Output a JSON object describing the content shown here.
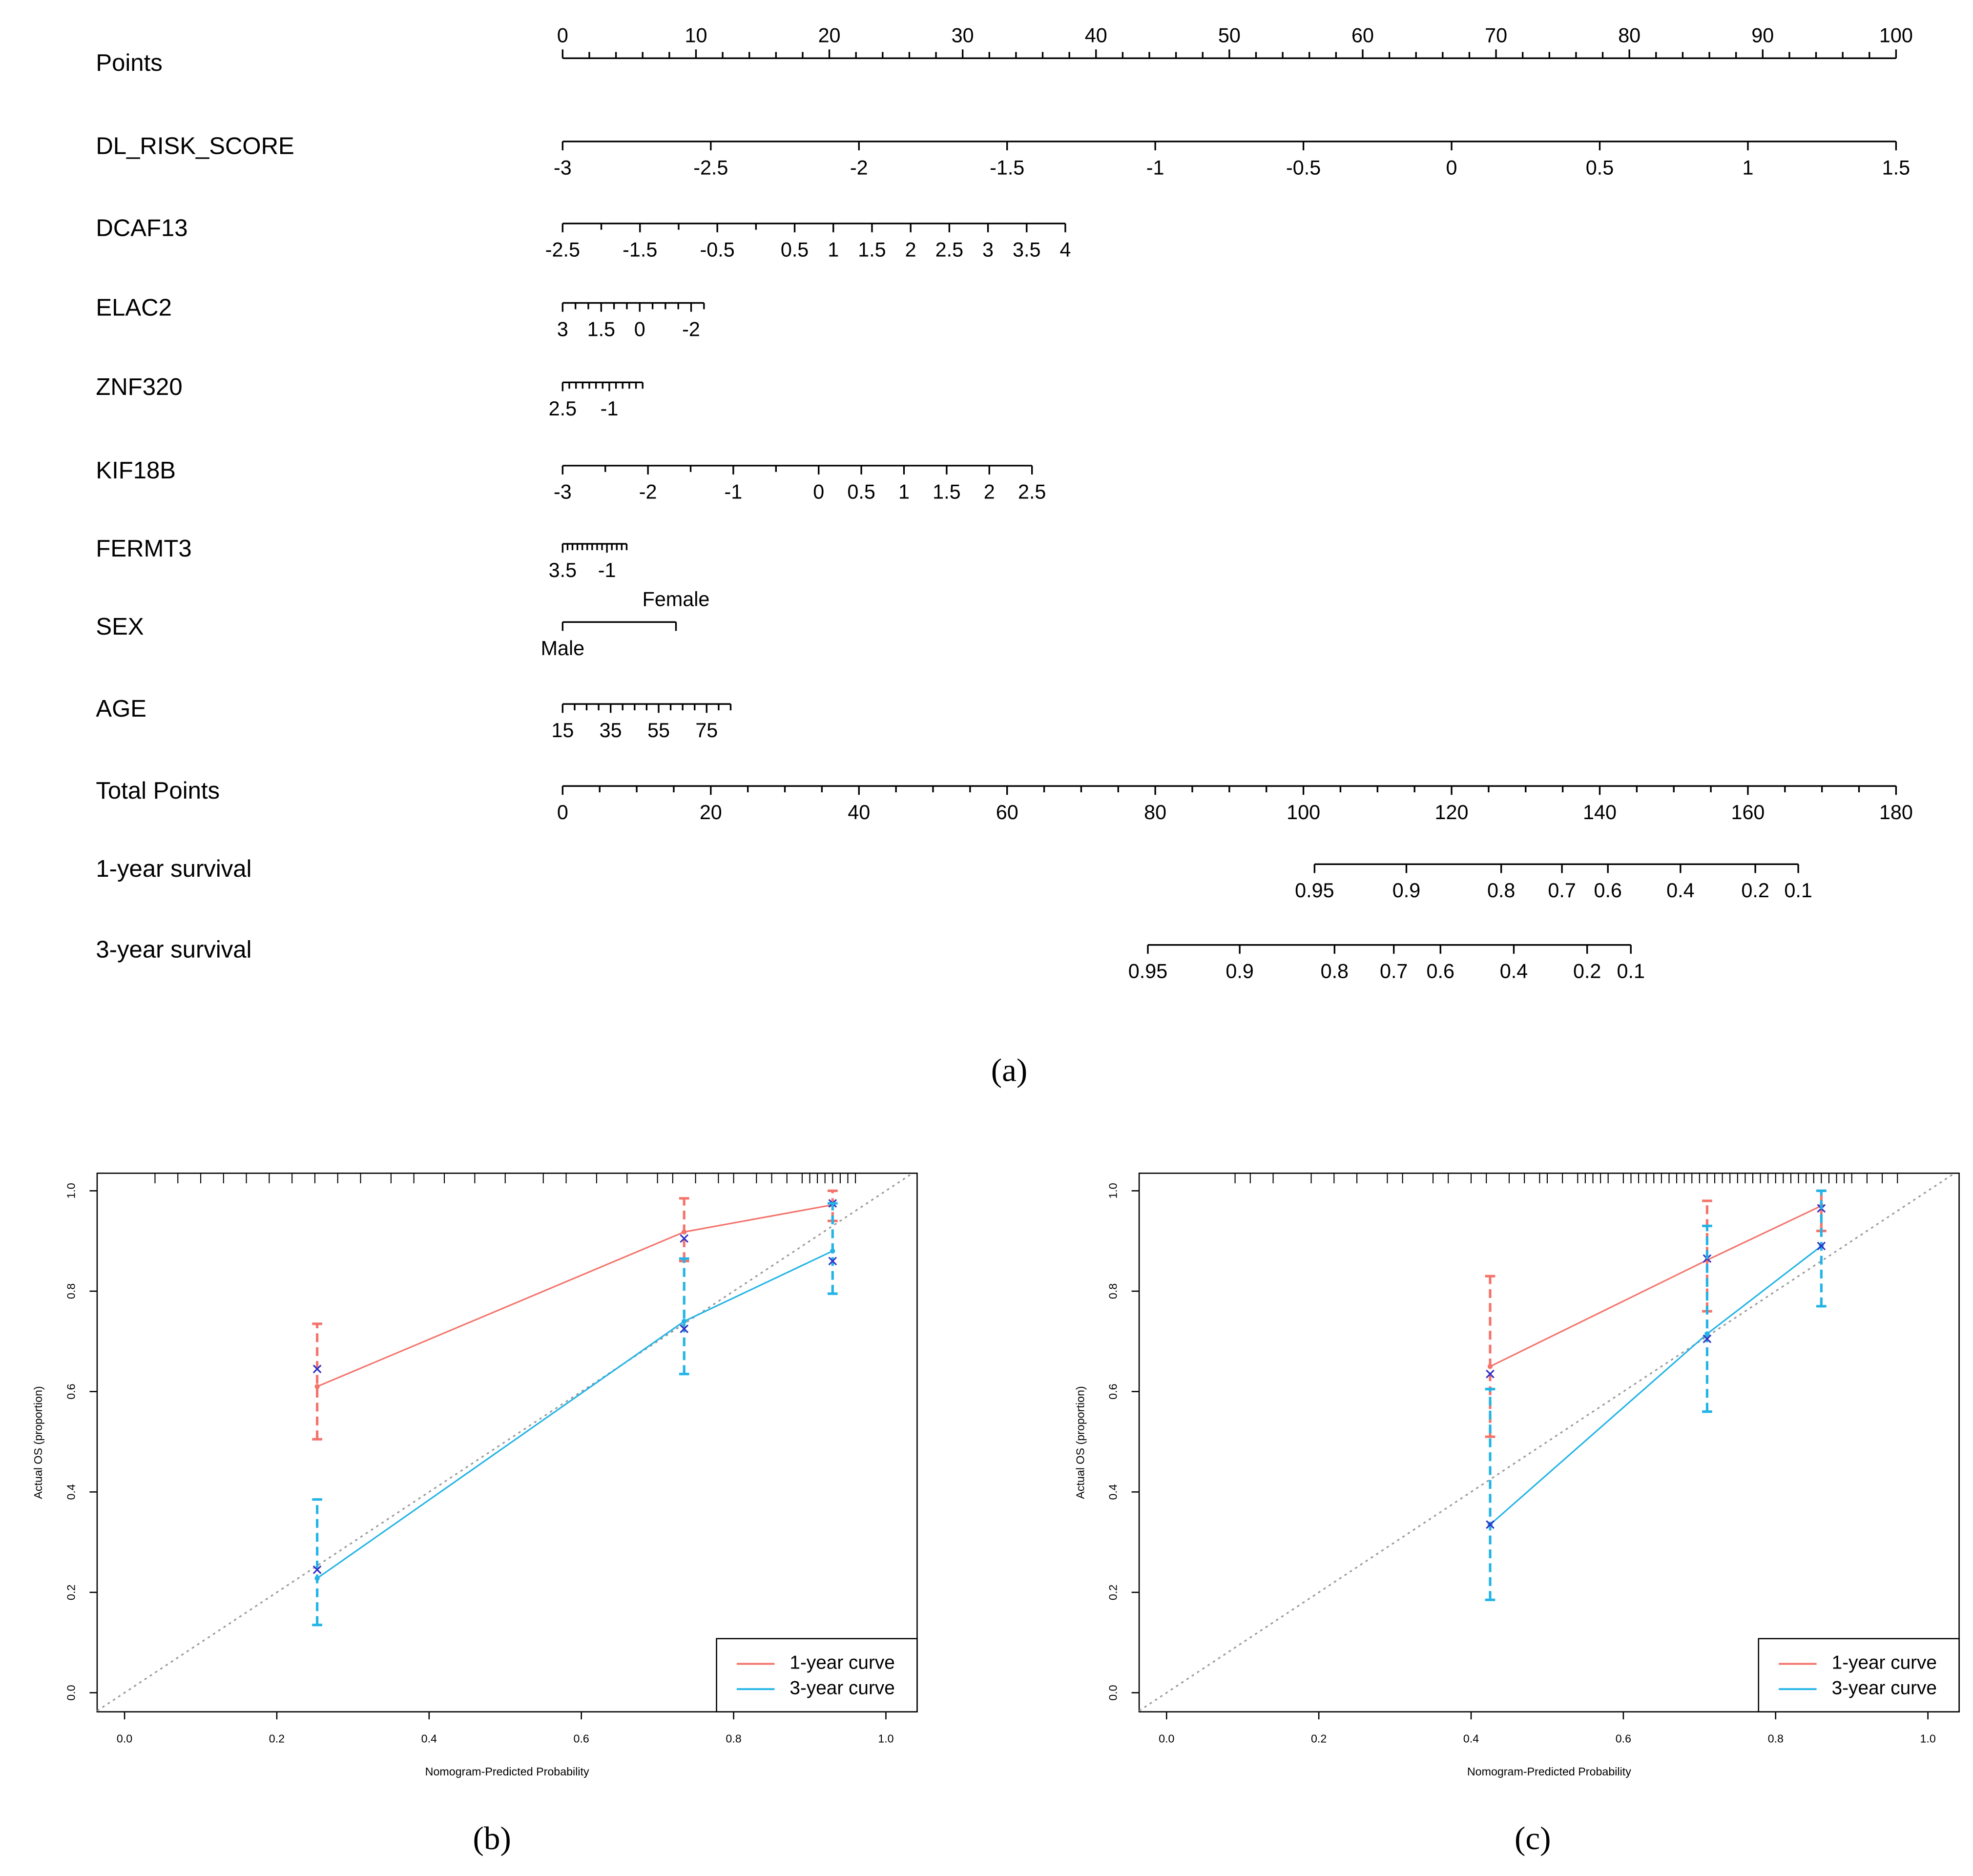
{
  "chart_data": [
    {
      "type": "nomogram",
      "caption": "(a)",
      "rows": [
        {
          "name": "Points",
          "range": [
            0,
            100
          ],
          "points_range": [
            0,
            100
          ],
          "ticks": [
            0,
            10,
            20,
            30,
            40,
            50,
            60,
            70,
            80,
            90,
            100
          ],
          "minor_ticks": [
            2,
            4,
            6,
            8,
            12,
            14,
            16,
            18,
            22,
            24,
            26,
            28,
            32,
            34,
            36,
            38,
            42,
            44,
            46,
            48,
            52,
            54,
            56,
            58,
            62,
            64,
            66,
            68,
            72,
            74,
            76,
            78,
            82,
            84,
            86,
            88,
            92,
            94,
            96,
            98
          ]
        },
        {
          "name": "DL_RISK_SCORE",
          "range": [
            -3,
            1.5
          ],
          "points_range": [
            0,
            100
          ],
          "ticks": [
            -3,
            -2.5,
            -2,
            -1.5,
            -1,
            -0.5,
            0,
            0.5,
            1,
            1.5
          ]
        },
        {
          "name": "DCAF13",
          "range": [
            -2.5,
            4
          ],
          "points_range": [
            0,
            37.7
          ],
          "ticks": [
            -2.5,
            -1.5,
            -0.5,
            0.5,
            1,
            1.5,
            2,
            2.5,
            3,
            3.5,
            4
          ],
          "minor_ticks": [
            -2,
            -1,
            0
          ]
        },
        {
          "name": "ELAC2",
          "range": [
            3,
            -2.5
          ],
          "points_range": [
            0,
            10.6
          ],
          "ticks": [
            3,
            1.5,
            0,
            -2
          ],
          "minor_ticks": [
            2.5,
            2,
            1,
            0.5,
            -0.5,
            -1,
            -1.5,
            -2.5
          ]
        },
        {
          "name": "ZNF320",
          "range": [
            2.5,
            -3.5
          ],
          "points_range": [
            0,
            6
          ],
          "ticks": [
            2.5,
            -1
          ],
          "minor_ticks": [
            2,
            1.5,
            1,
            0.5,
            0,
            -0.5,
            -1.5,
            -2,
            -2.5,
            -3,
            -3.5
          ]
        },
        {
          "name": "KIF18B",
          "range": [
            -3,
            2.5
          ],
          "points_range": [
            0,
            35.2
          ],
          "ticks": [
            -3,
            -2,
            -1,
            0,
            0.5,
            1,
            1.5,
            2,
            2.5
          ],
          "minor_ticks": [
            -2.5,
            -1.5,
            -0.5
          ]
        },
        {
          "name": "FERMT3",
          "range": [
            3.5,
            -3
          ],
          "points_range": [
            0,
            4.8
          ],
          "ticks": [
            3.5,
            -1
          ],
          "minor_ticks": [
            3,
            2.5,
            2,
            1.5,
            1,
            0.5,
            0,
            -0.5,
            -1.5,
            -2,
            -2.5,
            -3
          ]
        },
        {
          "name": "SEX",
          "categories": [
            "Male",
            "Female"
          ],
          "category_points": [
            0,
            8.5
          ]
        },
        {
          "name": "AGE",
          "range": [
            15,
            85
          ],
          "points_range": [
            0,
            12.6
          ],
          "ticks": [
            15,
            35,
            55,
            75
          ],
          "minor_ticks": [
            20,
            25,
            30,
            40,
            45,
            50,
            60,
            65,
            70,
            80,
            85
          ]
        },
        {
          "name": "Total Points",
          "range": [
            0,
            180
          ],
          "points_range": [
            0,
            100
          ],
          "ticks": [
            0,
            20,
            40,
            60,
            80,
            100,
            120,
            140,
            160,
            180
          ],
          "minor_ticks": [
            5,
            10,
            15,
            25,
            30,
            35,
            45,
            50,
            55,
            65,
            70,
            75,
            85,
            90,
            95,
            105,
            110,
            115,
            125,
            130,
            135,
            145,
            150,
            155,
            165,
            170,
            175
          ]
        },
        {
          "name": "1-year survival",
          "ticks": [
            0.95,
            0.9,
            0.8,
            0.7,
            0.6,
            0.4,
            0.2,
            0.1
          ],
          "total_points": [
            101.5,
            113.9,
            126.7,
            134.9,
            141.1,
            150.9,
            161.0,
            166.8
          ]
        },
        {
          "name": "3-year survival",
          "ticks": [
            0.95,
            0.9,
            0.8,
            0.7,
            0.6,
            0.4,
            0.2,
            0.1
          ],
          "total_points": [
            79.0,
            91.4,
            104.2,
            112.2,
            118.5,
            128.4,
            138.3,
            144.2
          ]
        }
      ]
    },
    {
      "type": "calibration",
      "caption": "(b)",
      "x_label": "Nomogram-Predicted Probability",
      "y_label": "Actual OS (proportion)",
      "xlim": [
        -0.036,
        1.041
      ],
      "ylim": [
        -0.038,
        1.035
      ],
      "xticks": [
        {
          "value": 0,
          "label": "0.0"
        },
        0.2,
        0.4,
        0.6,
        0.8,
        {
          "value": 1,
          "label": "1.0"
        }
      ],
      "yticks": [
        {
          "value": 0,
          "label": "0.0"
        },
        0.2,
        0.4,
        0.6,
        0.8,
        {
          "value": 1,
          "label": "1.0"
        }
      ],
      "legend": "bottom-right",
      "corrected_color": "#3030c8",
      "rug": [
        0.04,
        0.07,
        0.1,
        0.13,
        0.16,
        0.19,
        0.22,
        0.25,
        0.28,
        0.31,
        0.35,
        0.38,
        0.42,
        0.46,
        0.5,
        0.55,
        0.58,
        0.62,
        0.66,
        0.7,
        0.72,
        0.75,
        0.78,
        0.8,
        0.83,
        0.85,
        0.87,
        0.89,
        0.9,
        0.91,
        0.92,
        0.93,
        0.94,
        0.95,
        0.96
      ],
      "series": [
        {
          "name": "1-year curve",
          "color": "#f4736b",
          "x": [
            0.253,
            0.735,
            0.93
          ],
          "values": [
            0.61,
            0.918,
            0.972
          ],
          "lower": [
            0.505,
            0.86,
            0.94
          ],
          "upper": [
            0.735,
            0.985,
            1.0
          ],
          "corrected": [
            0.645,
            0.905,
            0.975
          ]
        },
        {
          "name": "3-year curve",
          "color": "#22b4e6",
          "x": [
            0.253,
            0.735,
            0.93
          ],
          "values": [
            0.228,
            0.74,
            0.88
          ],
          "lower": [
            0.135,
            0.635,
            0.795
          ],
          "upper": [
            0.385,
            0.865,
            0.975
          ],
          "corrected": [
            0.245,
            0.725,
            0.86
          ]
        }
      ]
    },
    {
      "type": "calibration",
      "caption": "(c)",
      "x_label": "Nomogram-Predicted Probability",
      "y_label": "Actual OS (proportion)",
      "xlim": [
        -0.036,
        1.041
      ],
      "ylim": [
        -0.038,
        1.035
      ],
      "xticks": [
        {
          "value": 0,
          "label": "0.0"
        },
        0.2,
        0.4,
        0.6,
        0.8,
        {
          "value": 1,
          "label": "1.0"
        }
      ],
      "yticks": [
        {
          "value": 0,
          "label": "0.0"
        },
        0.2,
        0.4,
        0.6,
        0.8,
        {
          "value": 1,
          "label": "1.0"
        }
      ],
      "legend": "bottom-right",
      "corrected_color": "#3030c8",
      "rug": [
        0.09,
        0.11,
        0.14,
        0.19,
        0.22,
        0.25,
        0.29,
        0.31,
        0.35,
        0.37,
        0.4,
        0.42,
        0.45,
        0.47,
        0.49,
        0.5,
        0.52,
        0.54,
        0.55,
        0.56,
        0.57,
        0.58,
        0.6,
        0.61,
        0.62,
        0.63,
        0.64,
        0.65,
        0.66,
        0.67,
        0.68,
        0.69,
        0.7,
        0.71,
        0.72,
        0.73,
        0.74,
        0.75,
        0.76,
        0.77,
        0.78,
        0.79,
        0.8,
        0.81,
        0.82,
        0.83,
        0.84,
        0.85,
        0.86,
        0.87,
        0.88,
        0.89,
        0.9,
        0.92,
        0.94,
        0.96
      ],
      "series": [
        {
          "name": "1-year curve",
          "color": "#f4736b",
          "x": [
            0.425,
            0.71,
            0.86
          ],
          "values": [
            0.65,
            0.862,
            0.97
          ],
          "lower": [
            0.51,
            0.76,
            0.92
          ],
          "upper": [
            0.83,
            0.98,
            1.0
          ],
          "corrected": [
            0.635,
            0.865,
            0.965
          ]
        },
        {
          "name": "3-year curve",
          "color": "#22b4e6",
          "x": [
            0.425,
            0.71,
            0.86
          ],
          "values": [
            0.335,
            0.715,
            0.89
          ],
          "lower": [
            0.185,
            0.56,
            0.77
          ],
          "upper": [
            0.605,
            0.93,
            1.0
          ],
          "corrected": [
            0.335,
            0.705,
            0.89
          ]
        }
      ]
    }
  ]
}
